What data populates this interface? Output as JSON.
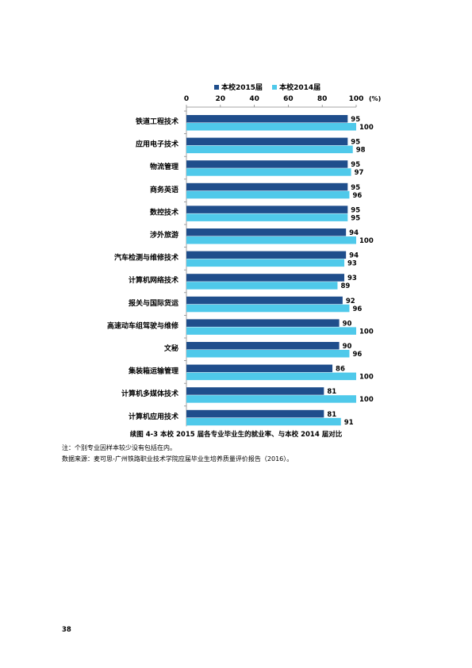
{
  "chart_data": {
    "type": "bar",
    "orientation": "horizontal",
    "categories": [
      "铁道工程技术",
      "应用电子技术",
      "物流管理",
      "商务英语",
      "数控技术",
      "涉外旅游",
      "汽车检测与维修技术",
      "计算机网络技术",
      "报关与国际货运",
      "高速动车组驾驶与维修",
      "文秘",
      "集装箱运输管理",
      "计算机多媒体技术",
      "计算机应用技术"
    ],
    "series": [
      {
        "name": "本校2015届",
        "color": "#1F4E8C",
        "values": [
          95,
          95,
          95,
          95,
          95,
          94,
          94,
          93,
          92,
          90,
          90,
          86,
          81,
          81
        ]
      },
      {
        "name": "本校2014届",
        "color": "#4FC9EA",
        "values": [
          100,
          98,
          97,
          96,
          95,
          100,
          93,
          89,
          96,
          100,
          96,
          100,
          100,
          91
        ]
      }
    ],
    "xlim": [
      0,
      100
    ],
    "xticks": [
      "0",
      "20",
      "40",
      "60",
      "80",
      "100"
    ],
    "unit_label": "(%)",
    "legend_position": "top"
  },
  "caption": "续图 4-3   本校 2015 届各专业毕业生的就业率、与本校 2014 届对比",
  "notes": [
    "注：个别专业因样本较少没有包括在内。",
    "数据来源：麦可思-广州铁路职业技术学院应届毕业生培养质量评价报告（2016）。"
  ],
  "page_number": "38"
}
